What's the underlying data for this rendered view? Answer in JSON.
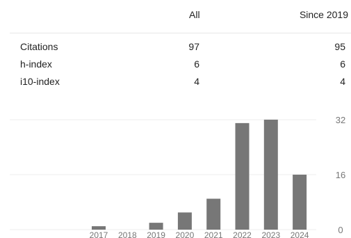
{
  "table": {
    "col_all": "All",
    "col_since": "Since 2019",
    "rows": [
      {
        "label": "Citations",
        "all": "97",
        "since": "95"
      },
      {
        "label": "h-index",
        "all": "6",
        "since": "6"
      },
      {
        "label": "i10-index",
        "all": "4",
        "since": "4"
      }
    ]
  },
  "colors": {
    "bar": "#777777",
    "grid": "#eeeeee",
    "tick": "#777777"
  },
  "chart_data": {
    "type": "bar",
    "categories": [
      "2017",
      "2018",
      "2019",
      "2020",
      "2021",
      "2022",
      "2023",
      "2024"
    ],
    "values": [
      1,
      0,
      2,
      5,
      9,
      31,
      32,
      16
    ],
    "yticks": [
      "0",
      "16",
      "32"
    ],
    "ylim": [
      0,
      33
    ],
    "grid": true
  }
}
